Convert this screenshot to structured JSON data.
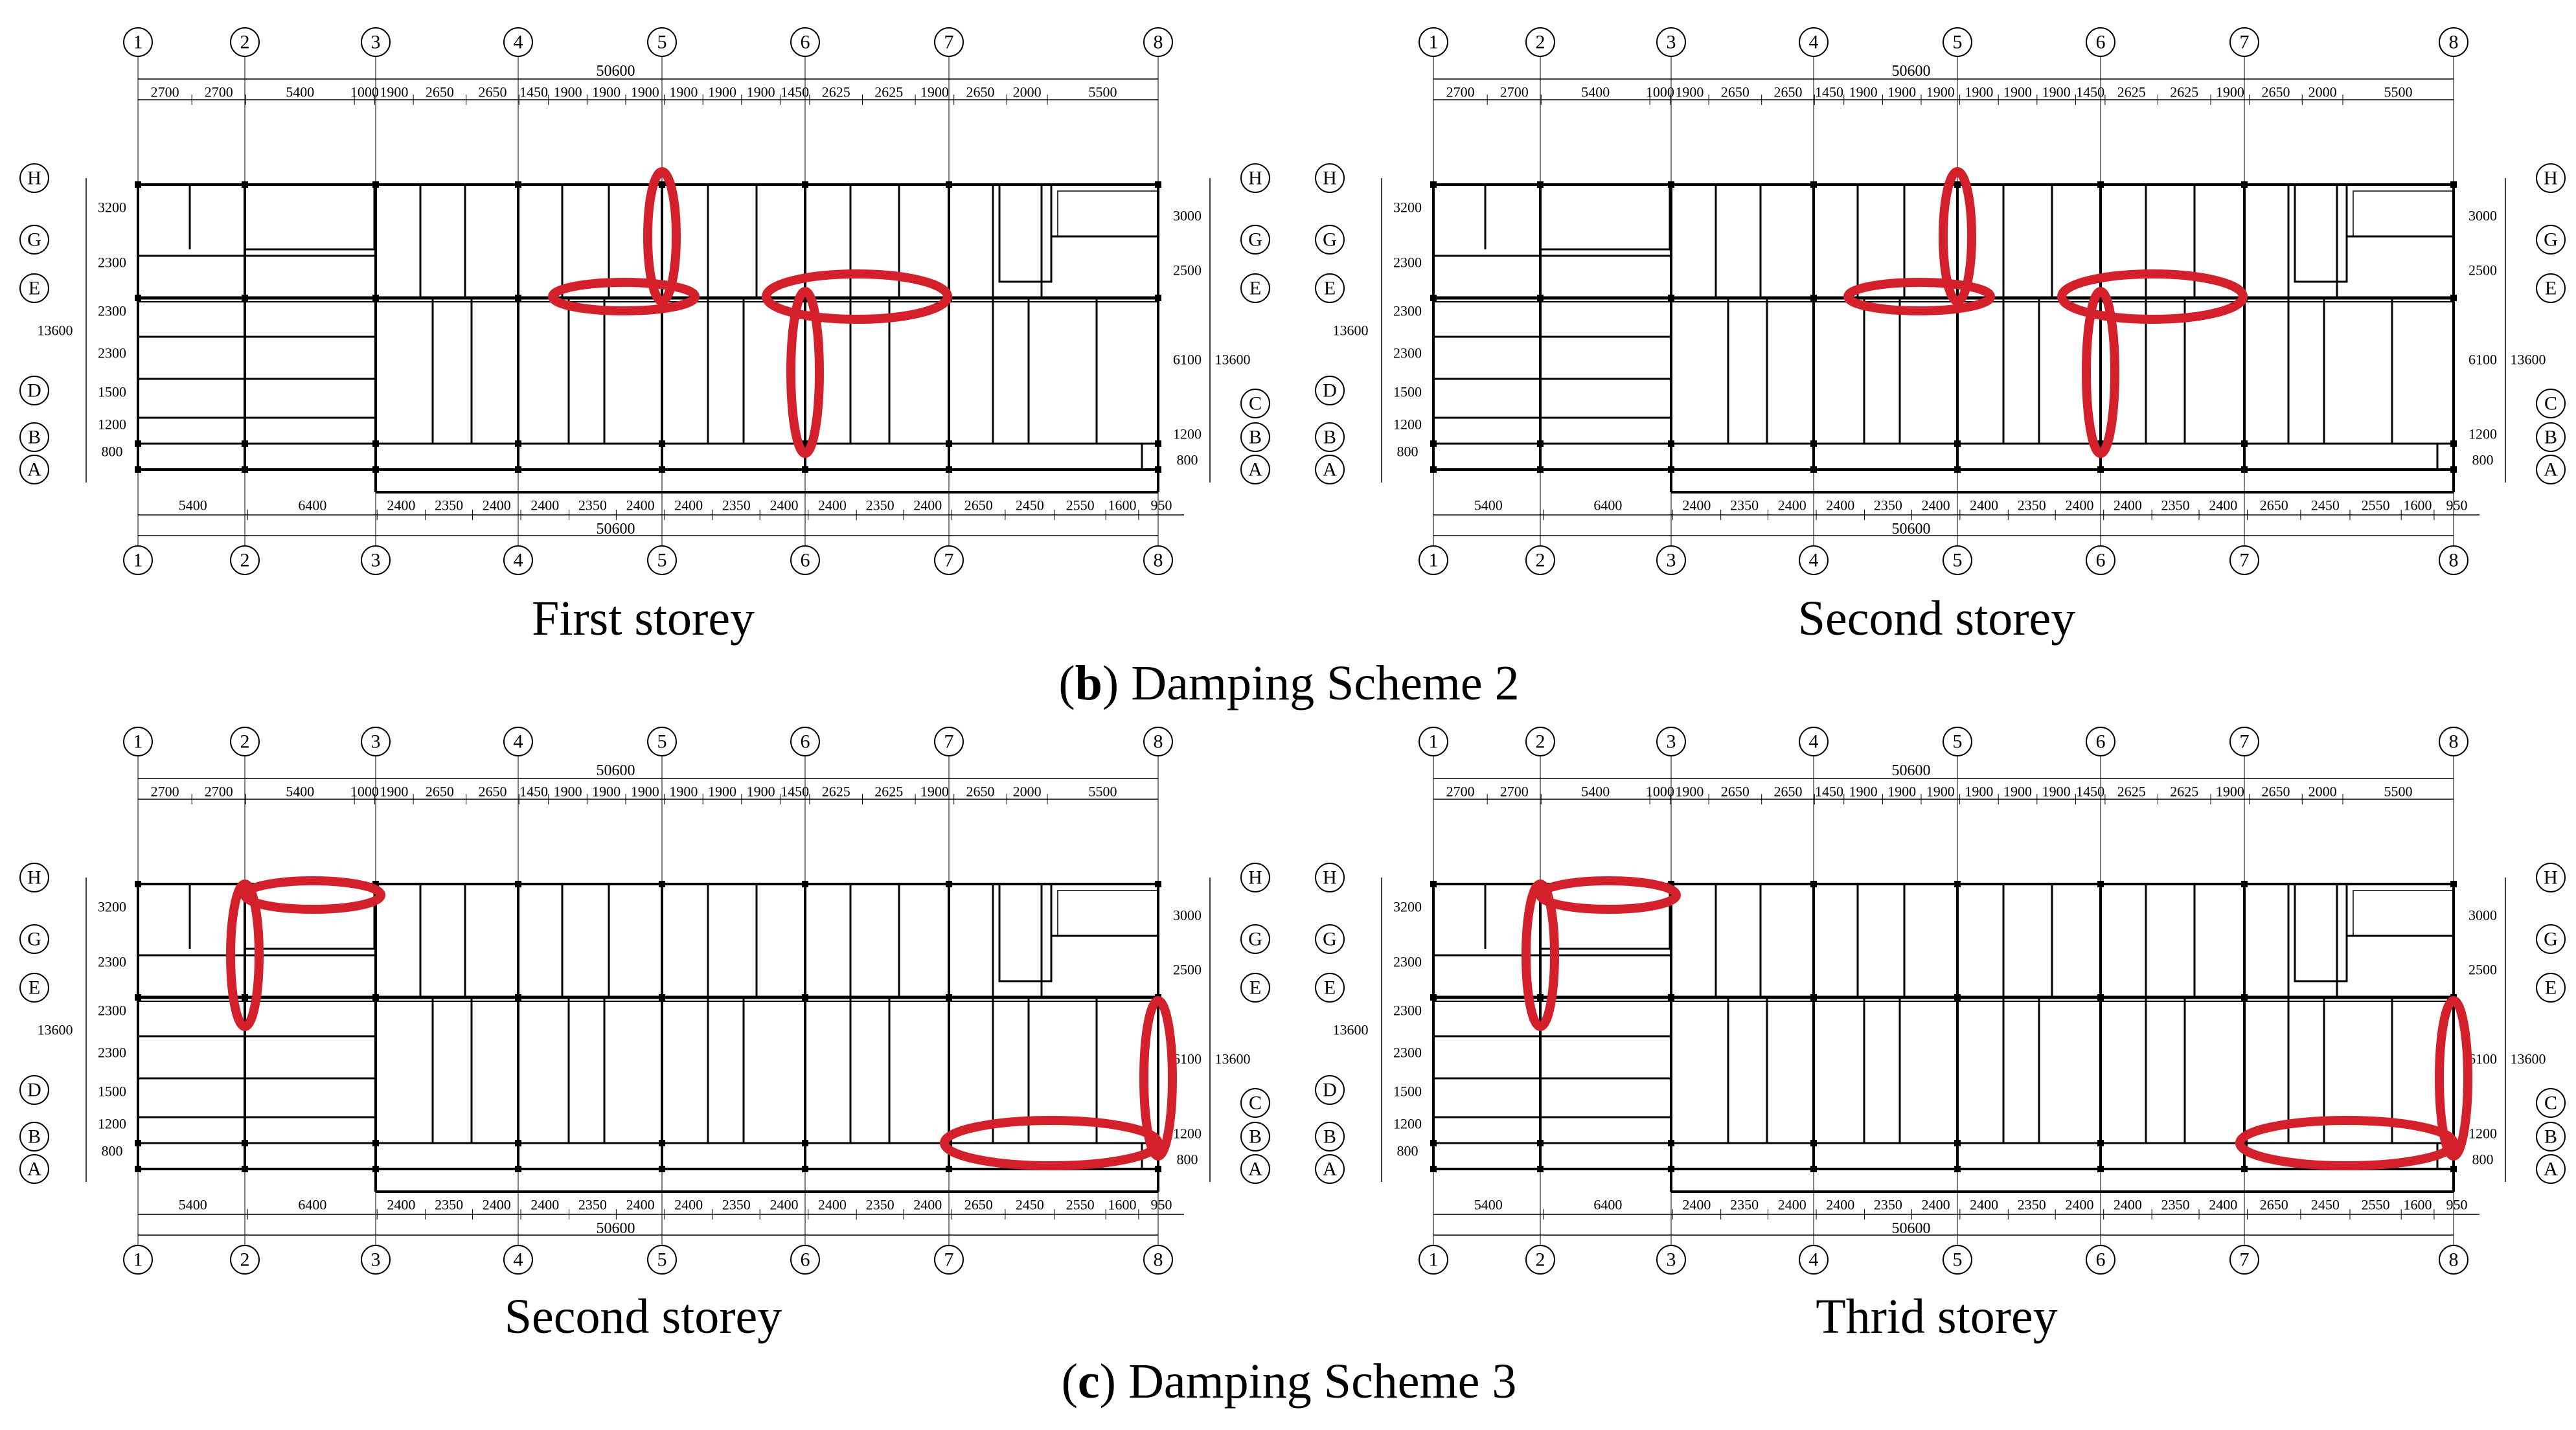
{
  "figure": {
    "scheme_b": {
      "letter": "b",
      "text": ") Damping Scheme 2",
      "open": "("
    },
    "scheme_c": {
      "letter": "c",
      "text": ") Damping Scheme 3",
      "open": "("
    }
  },
  "plans": [
    {
      "id": "p1",
      "title": "First storey",
      "dampers": "A"
    },
    {
      "id": "p2",
      "title": "Second storey",
      "dampers": "A"
    },
    {
      "id": "p3",
      "title": "Second storey",
      "dampers": "B"
    },
    {
      "id": "p4",
      "title": "Thrid storey",
      "dampers": "B"
    }
  ],
  "axes": {
    "columns": [
      "1",
      "2",
      "3",
      "4",
      "5",
      "6",
      "7",
      "8"
    ],
    "rows_left": [
      "H",
      "G",
      "E",
      "D",
      "B",
      "A"
    ],
    "rows_right": [
      "H",
      "G",
      "E",
      "C",
      "B",
      "A"
    ]
  },
  "dimensions": {
    "total": "50600",
    "top": [
      "2700",
      "2700",
      "5400",
      "1000",
      "1900",
      "2650",
      "2650",
      "1450",
      "1900",
      "1900",
      "1900",
      "1900",
      "1900",
      "1900",
      "1450",
      "2625",
      "2625",
      "1900",
      "2650",
      "2000",
      "5500"
    ],
    "bottom": [
      "5400",
      "6400",
      "2400",
      "2350",
      "2400",
      "2400",
      "2350",
      "2400",
      "2400",
      "2350",
      "2400",
      "2400",
      "2350",
      "2400",
      "2650",
      "2450",
      "2550",
      "1600",
      "950"
    ],
    "left": [
      "3200",
      "2300",
      "2300",
      "2300",
      "1500",
      "1200",
      "800"
    ],
    "left_total": "13600",
    "right": [
      "3000",
      "2500",
      "6100",
      "1200",
      "800"
    ],
    "right_total": "13600"
  },
  "colors": {
    "damper": "#d4202a",
    "line": "#000000"
  }
}
